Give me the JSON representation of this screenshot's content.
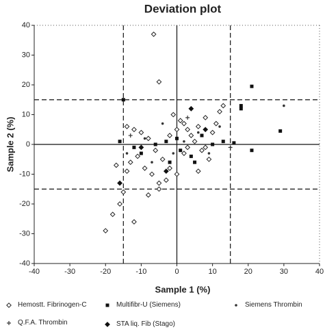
{
  "chart_data": {
    "type": "scatter",
    "title": "Deviation plot",
    "x_label": "Sample 1 (%)",
    "y_label": "Sample 2 (%)",
    "xlim": [
      -40,
      40
    ],
    "ylim": [
      -40,
      40
    ],
    "xticks": [
      -40,
      -30,
      -20,
      -10,
      0,
      10,
      20,
      30,
      40
    ],
    "yticks": [
      -40,
      -30,
      -20,
      -10,
      0,
      10,
      20,
      30,
      40
    ],
    "reference_lines": {
      "x": [
        -15,
        0,
        15
      ],
      "y": [
        -15,
        0,
        15
      ]
    },
    "series": [
      {
        "name": "Hemostt. Fibrinogen-C",
        "color": "#222222",
        "marker": "open-diamond",
        "x": [
          -6.5,
          -5,
          -16,
          -18,
          -12,
          -20,
          -14,
          -12,
          -10,
          -8,
          -6,
          -4,
          -2,
          0,
          2,
          4,
          6,
          8,
          10,
          -1,
          1,
          3,
          5,
          7,
          9,
          -3,
          -5,
          -7,
          -9,
          -11,
          -13,
          -17,
          12,
          13,
          -15,
          -14,
          -2,
          0,
          2,
          6,
          -8,
          -5,
          3,
          11,
          8
        ],
        "values": [
          37,
          21,
          -20,
          -23.5,
          -26,
          -29,
          6,
          5,
          4,
          2,
          -2,
          -5,
          -8,
          -10,
          -3,
          3,
          6,
          9,
          4,
          10,
          8,
          -1,
          1,
          -2,
          -5,
          -12,
          -13,
          -10,
          -8,
          -4,
          -6,
          -7,
          11,
          13,
          -16,
          -9,
          3,
          5,
          7,
          -9,
          -17,
          -15,
          5,
          7,
          -1
        ]
      },
      {
        "name": "Multifibr-U (Siemens)",
        "color": "#111111",
        "marker": "square",
        "x": [
          18,
          18,
          21,
          29,
          21,
          -15,
          -16,
          -12,
          -6,
          -3,
          1,
          4,
          7,
          10,
          13,
          16,
          -10,
          -2,
          0,
          5
        ],
        "values": [
          13,
          12,
          19.5,
          4.5,
          -2,
          15,
          1,
          -1,
          0,
          1,
          -2,
          -4,
          3,
          0,
          1,
          0.5,
          -3,
          -6,
          2,
          -6
        ]
      },
      {
        "name": "Siemens Thrombin",
        "color": "#333333",
        "marker": "dot",
        "x": [
          30,
          -14,
          -9,
          -4,
          2,
          6,
          9,
          12,
          -7,
          -1
        ],
        "values": [
          13,
          -3,
          2,
          7,
          1,
          4,
          -3,
          6,
          -6,
          -3
        ]
      },
      {
        "name": "Q.F.A. Thrombin",
        "color": "#333333",
        "marker": "plus",
        "x": [
          15,
          -13,
          3
        ],
        "values": [
          -1,
          3,
          9
        ]
      },
      {
        "name": "STA liq. Fib (Stago)",
        "color": "#111111",
        "marker": "filled-diamond",
        "x": [
          -16,
          -10,
          8,
          4,
          -3
        ],
        "values": [
          -13,
          -1,
          5,
          12,
          -9
        ]
      }
    ]
  }
}
